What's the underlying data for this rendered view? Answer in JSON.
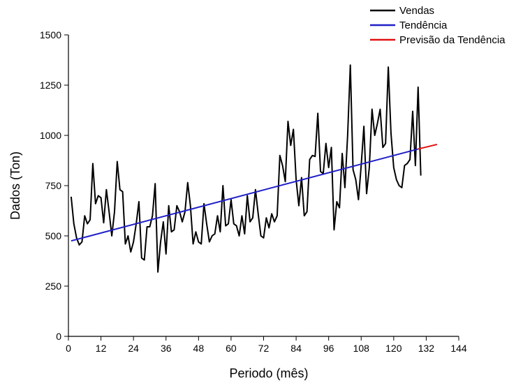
{
  "chart_data": {
    "type": "line",
    "xlabel": "Periodo (mês)",
    "ylabel": "Dados (Ton)",
    "xlim": [
      0,
      144
    ],
    "xticks": [
      0,
      12,
      24,
      36,
      48,
      60,
      72,
      84,
      96,
      108,
      120,
      132,
      144
    ],
    "ylim": [
      0,
      1500
    ],
    "yticks": [
      0,
      250,
      500,
      750,
      1000,
      1250,
      1500
    ],
    "legend": "top-right",
    "series": [
      {
        "name": "Vendas",
        "color": "#000000",
        "x": [
          1,
          2,
          3,
          4,
          5,
          6,
          7,
          8,
          9,
          10,
          11,
          12,
          13,
          14,
          15,
          16,
          17,
          18,
          19,
          20,
          21,
          22,
          23,
          24,
          25,
          26,
          27,
          28,
          29,
          30,
          31,
          32,
          33,
          34,
          35,
          36,
          37,
          38,
          39,
          40,
          41,
          42,
          43,
          44,
          45,
          46,
          47,
          48,
          49,
          50,
          51,
          52,
          53,
          54,
          55,
          56,
          57,
          58,
          59,
          60,
          61,
          62,
          63,
          64,
          65,
          66,
          67,
          68,
          69,
          70,
          71,
          72,
          73,
          74,
          75,
          76,
          77,
          78,
          79,
          80,
          81,
          82,
          83,
          84,
          85,
          86,
          87,
          88,
          89,
          90,
          91,
          92,
          93,
          94,
          95,
          96,
          97,
          98,
          99,
          100,
          101,
          102,
          103,
          104,
          105,
          106,
          107,
          108,
          109,
          110,
          111,
          112,
          113,
          114,
          115,
          116,
          117,
          118,
          119,
          120,
          121,
          122,
          123,
          124,
          125,
          126,
          127,
          128,
          129,
          130
        ],
        "values": [
          695,
          560,
          490,
          455,
          470,
          600,
          560,
          580,
          860,
          660,
          700,
          690,
          565,
          730,
          620,
          500,
          620,
          870,
          730,
          720,
          460,
          500,
          420,
          470,
          560,
          670,
          390,
          380,
          545,
          545,
          600,
          760,
          320,
          470,
          570,
          410,
          650,
          520,
          530,
          650,
          620,
          570,
          620,
          765,
          650,
          460,
          520,
          470,
          460,
          660,
          560,
          470,
          500,
          510,
          600,
          520,
          750,
          550,
          560,
          680,
          560,
          550,
          500,
          600,
          510,
          700,
          570,
          590,
          730,
          610,
          500,
          490,
          590,
          540,
          610,
          570,
          600,
          900,
          850,
          770,
          1070,
          950,
          1030,
          780,
          650,
          790,
          600,
          620,
          880,
          900,
          895,
          1110,
          820,
          810,
          960,
          840,
          940,
          530,
          670,
          640,
          910,
          740,
          1000,
          1350,
          830,
          780,
          680,
          850,
          1045,
          710,
          840,
          1130,
          1000,
          1060,
          1130,
          940,
          960,
          1340,
          1010,
          840,
          780,
          750,
          740,
          850,
          860,
          880,
          1120,
          850,
          1240,
          800
        ]
      },
      {
        "name": "Tendência",
        "color": "#1f1fc8",
        "x": [
          1,
          129
        ],
        "values": [
          475,
          932
        ]
      },
      {
        "name": "Previsão da Tendência",
        "color": "#e01010",
        "x": [
          129,
          136
        ],
        "values": [
          932,
          955
        ]
      }
    ]
  }
}
